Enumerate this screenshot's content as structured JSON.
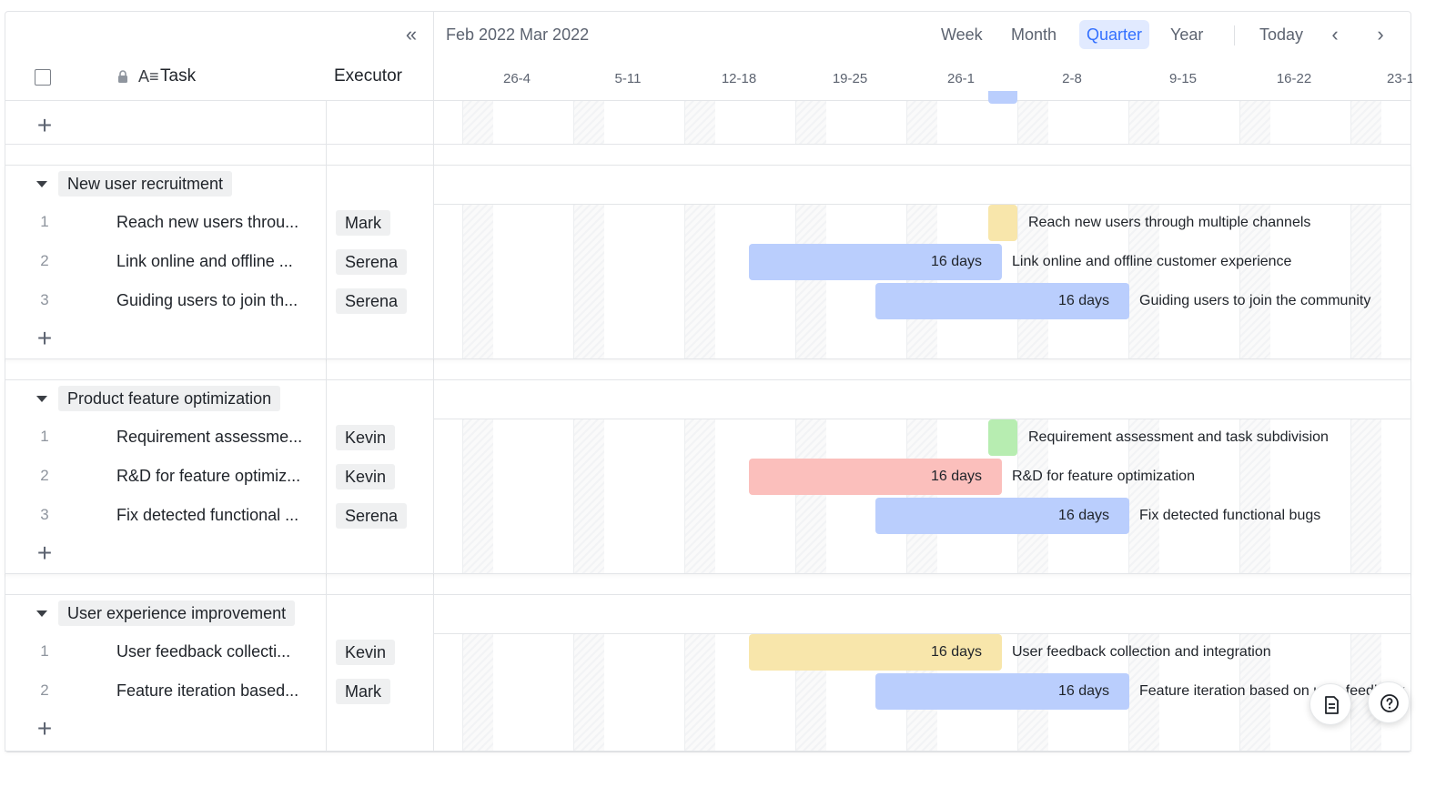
{
  "header": {
    "task_col": "Task",
    "executor_col": "Executor",
    "period": "Feb 2022 Mar 2022",
    "views": [
      "Week",
      "Month",
      "Quarter",
      "Year"
    ],
    "active_view": "Quarter",
    "today": "Today",
    "weeks": [
      "26-4",
      "5-11",
      "12-18",
      "19-25",
      "26-1",
      "2-8",
      "9-15",
      "16-22",
      "23-1"
    ]
  },
  "groups": [
    {
      "title": "New user recruitment",
      "tasks": [
        {
          "num": "1",
          "name": "Reach new users throu...",
          "executor": "Mark",
          "full": "Reach new users through multiple channels",
          "duration": "",
          "color": "#f8e6ab"
        },
        {
          "num": "2",
          "name": "Link online and offline ...",
          "executor": "Serena",
          "full": "Link online and offline customer experience",
          "duration": "16 days",
          "color": "#bacefd"
        },
        {
          "num": "3",
          "name": "Guiding users to join th...",
          "executor": "Serena",
          "full": "Guiding users to join the community",
          "duration": "16 days",
          "color": "#bacefd"
        }
      ]
    },
    {
      "title": "Product feature optimization",
      "tasks": [
        {
          "num": "1",
          "name": "Requirement assessme...",
          "executor": "Kevin",
          "full": "Requirement assessment and task subdivision",
          "duration": "",
          "color": "#b7edb1"
        },
        {
          "num": "2",
          "name": "R&D for feature optimiz...",
          "executor": "Kevin",
          "full": "R&D for feature optimization",
          "duration": "16 days",
          "color": "#fbbfbc"
        },
        {
          "num": "3",
          "name": "Fix detected functional ...",
          "executor": "Serena",
          "full": "Fix detected functional bugs",
          "duration": "16 days",
          "color": "#bacefd"
        }
      ]
    },
    {
      "title": "User experience improvement",
      "tasks": [
        {
          "num": "1",
          "name": "User feedback collecti...",
          "executor": "Kevin",
          "full": "User feedback collection and integration",
          "duration": "16 days",
          "color": "#f8e6ab"
        },
        {
          "num": "2",
          "name": "Feature iteration based...",
          "executor": "Mark",
          "full": "Feature iteration based on user feedback",
          "duration": "16 days",
          "color": "#bacefd"
        }
      ]
    }
  ]
}
